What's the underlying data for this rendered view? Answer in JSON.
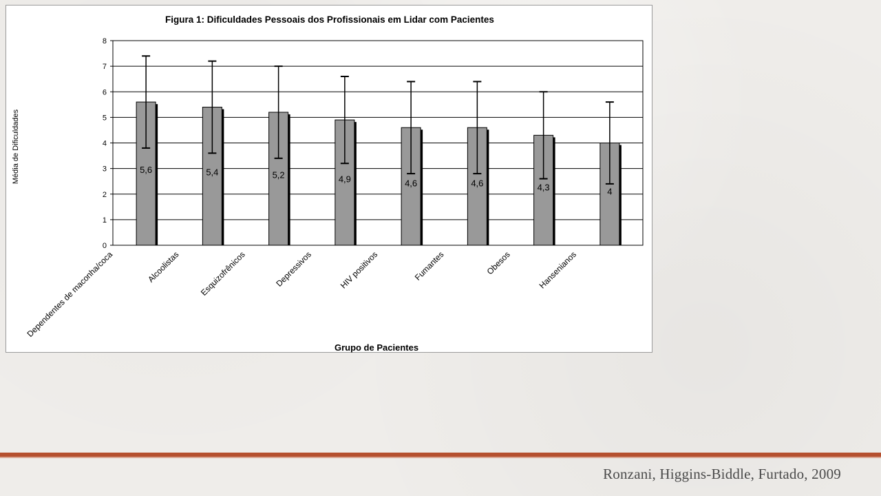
{
  "slide": {
    "citation": "Ronzani, Higgins-Biddle, Furtado, 2009",
    "accent_color": "#b5502f"
  },
  "chart_data": {
    "type": "bar",
    "title": "Figura 1: Dificuldades Pessoais dos Profissionais em Lidar com Pacientes",
    "xlabel": "Grupo de Pacientes",
    "ylabel": "Média de Dificuldades",
    "ylim": [
      0,
      8
    ],
    "yticks": [
      0,
      1,
      2,
      3,
      4,
      5,
      6,
      7,
      8
    ],
    "grid": true,
    "legend": "none",
    "bar_color": "#999999",
    "categories": [
      "Dependentes de maconha/coca",
      "Alcoolistas",
      "Esquizofrênicos",
      "Depressivos",
      "HIV positivos",
      "Fumantes",
      "Obesos",
      "Hansenianos"
    ],
    "values": [
      5.6,
      5.4,
      5.2,
      4.9,
      4.6,
      4.6,
      4.3,
      4.0
    ],
    "value_labels": [
      "5,6",
      "5,4",
      "5,2",
      "4,9",
      "4,6",
      "4,6",
      "4,3",
      "4"
    ],
    "error_low": [
      3.8,
      3.6,
      3.4,
      3.2,
      2.8,
      2.8,
      2.6,
      2.4
    ],
    "error_high": [
      7.4,
      7.2,
      7.0,
      6.6,
      6.4,
      6.4,
      6.0,
      5.6
    ]
  }
}
